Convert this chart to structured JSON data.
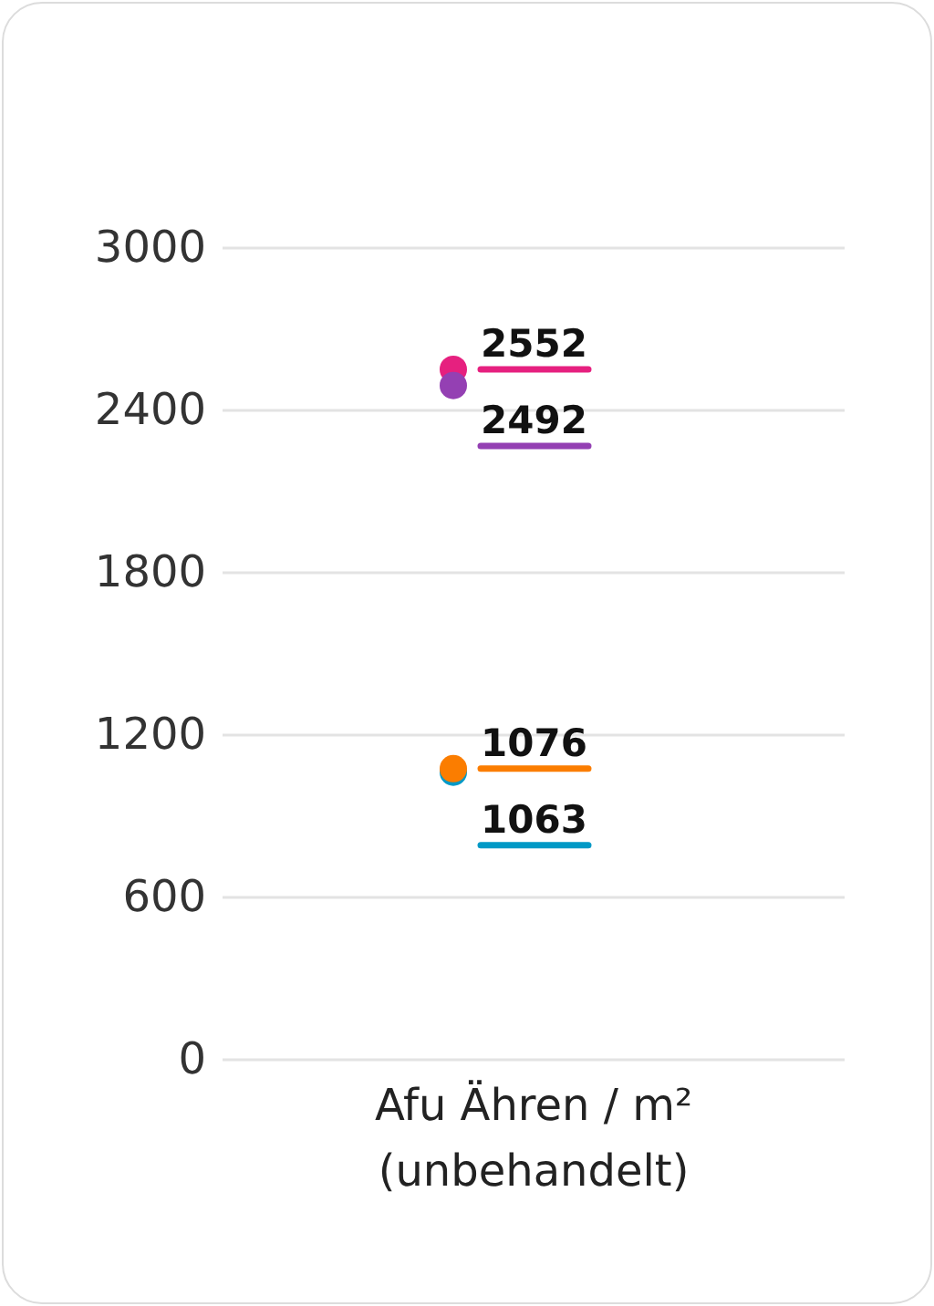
{
  "chart_data": {
    "type": "scatter",
    "categories": [
      "Afu Ähren / m² (unbehandelt)"
    ],
    "series": [
      {
        "color": "#e6207f",
        "values": [
          2552
        ]
      },
      {
        "color": "#9440b3",
        "values": [
          2492
        ]
      },
      {
        "color": "#0099c6",
        "values": [
          1063
        ]
      },
      {
        "color": "#fb7d00",
        "values": [
          1076
        ]
      }
    ],
    "ylim": [
      0,
      3000
    ],
    "yticks": [
      0,
      600,
      1200,
      1800,
      2400,
      3000
    ],
    "grid": "y",
    "data_labels": true,
    "marker": "circle"
  }
}
